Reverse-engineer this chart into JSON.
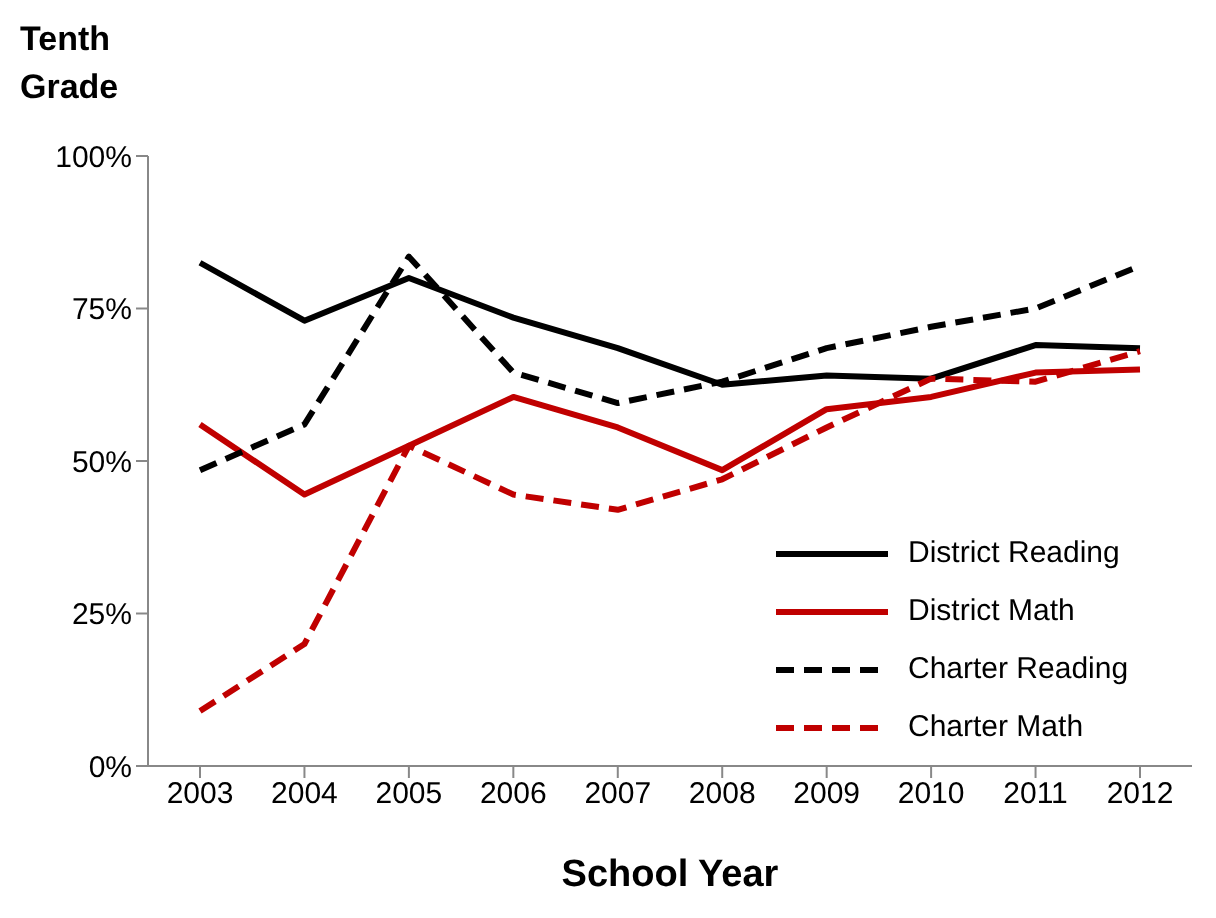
{
  "chart_data": {
    "type": "line",
    "title": "Tenth Grade",
    "xlabel": "School Year",
    "categories": [
      "2003",
      "2004",
      "2005",
      "2006",
      "2007",
      "2008",
      "2009",
      "2010",
      "2011",
      "2012"
    ],
    "series": [
      {
        "name": "District Reading",
        "color": "#000000",
        "line_style": "solid",
        "values": [
          82.5,
          73,
          80,
          73.5,
          68.5,
          62.5,
          64,
          63.5,
          69,
          68.5
        ]
      },
      {
        "name": "District Math",
        "color": "#c00000",
        "line_style": "solid",
        "values": [
          56,
          44.5,
          52.5,
          60.5,
          55.5,
          48.5,
          58.5,
          60.5,
          64.5,
          65
        ]
      },
      {
        "name": "Charter Reading",
        "color": "#000000",
        "line_style": "dashed",
        "values": [
          48.5,
          56,
          83.5,
          64.5,
          59.5,
          63,
          68.5,
          72,
          75,
          82
        ]
      },
      {
        "name": "Charter Math",
        "color": "#c00000",
        "line_style": "dashed",
        "values": [
          9,
          20,
          52.5,
          44.5,
          42,
          47,
          55.5,
          63.5,
          63,
          68
        ]
      }
    ],
    "ylim": [
      0,
      100
    ],
    "yticks": [
      {
        "value": 0,
        "label": "0%"
      },
      {
        "value": 25,
        "label": "25%"
      },
      {
        "value": 50,
        "label": "50%"
      },
      {
        "value": 75,
        "label": "75%"
      },
      {
        "value": 100,
        "label": "100%"
      }
    ],
    "grid": false,
    "legend": "bottom right",
    "marker": "none"
  }
}
